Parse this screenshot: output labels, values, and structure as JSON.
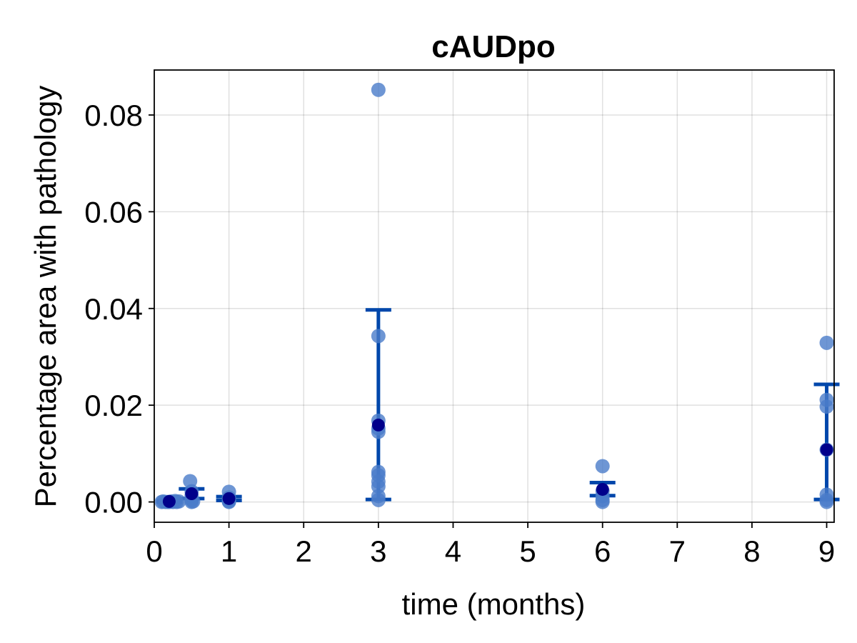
{
  "chart_data": {
    "type": "scatter",
    "title": "cAUDpo",
    "xlabel": "time (months)",
    "ylabel": "Percentage area with pathology",
    "xlim": [
      0,
      9.1
    ],
    "ylim": [
      -0.0042,
      0.0893
    ],
    "xticks": [
      0,
      1,
      2,
      3,
      4,
      5,
      6,
      7,
      8,
      9
    ],
    "xtick_labels": [
      "0",
      "1",
      "2",
      "3",
      "4",
      "5",
      "6",
      "7",
      "8",
      "9"
    ],
    "yticks": [
      0.0,
      0.02,
      0.04,
      0.06,
      0.08
    ],
    "ytick_labels": [
      "0.00",
      "0.02",
      "0.04",
      "0.06",
      "0.08"
    ],
    "grid": true,
    "colors": {
      "points": "#4a7cc9",
      "mean": "#00008b",
      "errorbar": "#0047ab"
    },
    "points": [
      {
        "x": 0.1,
        "y": 0.0
      },
      {
        "x": 0.12,
        "y": 0.0001
      },
      {
        "x": 0.15,
        "y": 0.0
      },
      {
        "x": 0.18,
        "y": 0.0
      },
      {
        "x": 0.2,
        "y": 0.0
      },
      {
        "x": 0.23,
        "y": 0.0001
      },
      {
        "x": 0.25,
        "y": 0.0
      },
      {
        "x": 0.28,
        "y": 0.0002
      },
      {
        "x": 0.3,
        "y": 0.0
      },
      {
        "x": 0.33,
        "y": 0.0001
      },
      {
        "x": 0.48,
        "y": 0.0043
      },
      {
        "x": 0.5,
        "y": 0.0022
      },
      {
        "x": 0.5,
        "y": 0.0013
      },
      {
        "x": 0.5,
        "y": 0.0004
      },
      {
        "x": 0.52,
        "y": 0.0001
      },
      {
        "x": 0.5,
        "y": 0.0
      },
      {
        "x": 1.0,
        "y": 0.0021
      },
      {
        "x": 1.0,
        "y": 0.0009
      },
      {
        "x": 1.0,
        "y": 0.0004
      },
      {
        "x": 1.0,
        "y": 0.0001
      },
      {
        "x": 1.0,
        "y": 0.0
      },
      {
        "x": 3.0,
        "y": 0.0852
      },
      {
        "x": 3.0,
        "y": 0.0343
      },
      {
        "x": 3.0,
        "y": 0.0168
      },
      {
        "x": 3.0,
        "y": 0.0152
      },
      {
        "x": 3.0,
        "y": 0.0145
      },
      {
        "x": 3.0,
        "y": 0.0062
      },
      {
        "x": 3.0,
        "y": 0.0055
      },
      {
        "x": 3.0,
        "y": 0.0042
      },
      {
        "x": 3.0,
        "y": 0.0032
      },
      {
        "x": 3.0,
        "y": 0.0012
      },
      {
        "x": 3.0,
        "y": 0.0004
      },
      {
        "x": 6.0,
        "y": 0.0074
      },
      {
        "x": 6.0,
        "y": 0.0022
      },
      {
        "x": 6.0,
        "y": 0.0012
      },
      {
        "x": 6.0,
        "y": 0.0004
      },
      {
        "x": 6.0,
        "y": 0.0
      },
      {
        "x": 9.0,
        "y": 0.0329
      },
      {
        "x": 9.0,
        "y": 0.0211
      },
      {
        "x": 9.0,
        "y": 0.0197
      },
      {
        "x": 9.0,
        "y": 0.0108
      },
      {
        "x": 9.0,
        "y": 0.0015
      },
      {
        "x": 9.0,
        "y": 0.0004
      },
      {
        "x": 9.0,
        "y": 0.0
      }
    ],
    "summary": [
      {
        "x": 0.2,
        "mean": 0.0001,
        "low": 0.0,
        "high": 0.0002
      },
      {
        "x": 0.5,
        "mean": 0.0017,
        "low": 0.0007,
        "high": 0.0027
      },
      {
        "x": 1.0,
        "mean": 0.0007,
        "low": 0.0003,
        "high": 0.0011
      },
      {
        "x": 3.0,
        "mean": 0.0159,
        "low": 0.0005,
        "high": 0.0397
      },
      {
        "x": 6.0,
        "mean": 0.0026,
        "low": 0.0013,
        "high": 0.004
      },
      {
        "x": 9.0,
        "mean": 0.0108,
        "low": 0.0005,
        "high": 0.0243
      }
    ]
  }
}
